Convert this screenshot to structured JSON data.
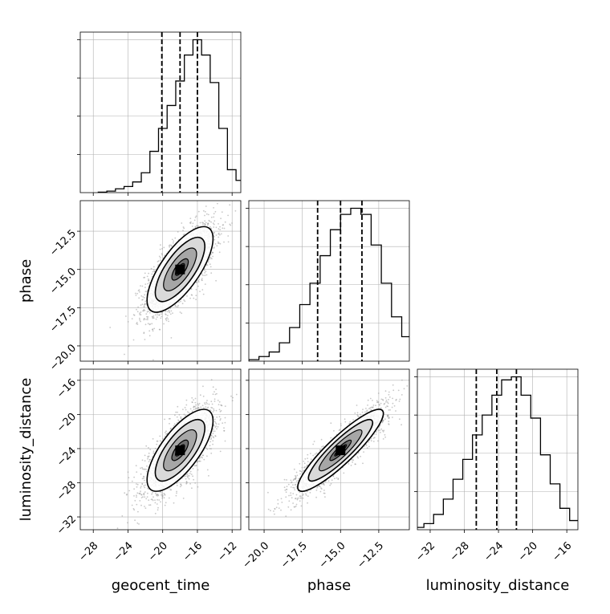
{
  "chart_data": {
    "type": "corner",
    "parameters": [
      "geocent_time",
      "phase",
      "luminosity_distance"
    ],
    "axis_labels": {
      "bottom": [
        "geocent_time",
        "phase",
        "luminosity_distance"
      ],
      "left": [
        "phase",
        "luminosity_distance"
      ]
    },
    "ranges": {
      "geocent_time": [
        -29.5,
        -11
      ],
      "phase": [
        -21,
        -10.5
      ],
      "luminosity_distance": [
        -33.5,
        -14.7
      ]
    },
    "ticks": {
      "geocent_time": {
        "values": [
          -28,
          -24,
          -20,
          -16,
          -12
        ],
        "labels": [
          "−28",
          "−24",
          "−20",
          "−16",
          "−12"
        ]
      },
      "phase": {
        "values": [
          -20,
          -17.5,
          -15,
          -12.5
        ],
        "labels": [
          "−20.0",
          "−17.5",
          "−15.0",
          "−12.5"
        ]
      },
      "luminosity_distance": {
        "values": [
          -32,
          -28,
          -24,
          -20,
          -16
        ],
        "labels": [
          "−32",
          "−28",
          "−24",
          "−20",
          "−16"
        ]
      }
    },
    "quantiles": {
      "geocent_time": [
        -20.1,
        -18.0,
        -16.0
      ],
      "phase": [
        -16.5,
        -15.0,
        -13.6
      ],
      "luminosity_distance": [
        -26.6,
        -24.2,
        -21.9
      ]
    },
    "histograms": {
      "geocent_time": [
        0.003,
        0.01,
        0.025,
        0.04,
        0.07,
        0.13,
        0.27,
        0.42,
        0.57,
        0.73,
        0.9,
        1.0,
        0.9,
        0.72,
        0.42,
        0.15,
        0.08,
        0.02,
        0.005
      ],
      "phase": [
        0.003,
        0.01,
        0.03,
        0.06,
        0.12,
        0.22,
        0.37,
        0.51,
        0.69,
        0.86,
        0.96,
        1.0,
        0.96,
        0.76,
        0.51,
        0.29,
        0.16,
        0.07,
        0.03,
        0.01
      ],
      "luminosity_distance": [
        0.005,
        0.015,
        0.04,
        0.1,
        0.2,
        0.33,
        0.46,
        0.62,
        0.75,
        0.88,
        0.98,
        1.0,
        0.88,
        0.73,
        0.49,
        0.3,
        0.14,
        0.06,
        0.01
      ]
    },
    "histogram_ymax_ticks": [
      0.25,
      0.5,
      0.75,
      1.0
    ],
    "scatter": {
      "phase_vs_geocent_time": {
        "mean": [
          -18.0,
          -15.0
        ],
        "sd": [
          1.9,
          1.4
        ],
        "rho": 0.72
      },
      "luminosity_distance_vs_geocent_time": {
        "mean": [
          -18.0,
          -24.2
        ],
        "sd": [
          1.9,
          2.4
        ],
        "rho": 0.72
      },
      "luminosity_distance_vs_phase": {
        "mean": [
          -15.0,
          -24.2
        ],
        "sd": [
          1.4,
          2.4
        ],
        "rho": 0.9
      }
    },
    "contour_levels_sigma": [
      0.5,
      1.0,
      1.5,
      2.0
    ],
    "grid": true,
    "colors": {
      "line": "#000000",
      "points": "#9a9a9a",
      "grid": "#b0b0b0",
      "fills": [
        "#d9d9d9",
        "#a6a6a6",
        "#6e6e6e",
        "#3a3a3a"
      ],
      "peak": "#000000"
    }
  }
}
